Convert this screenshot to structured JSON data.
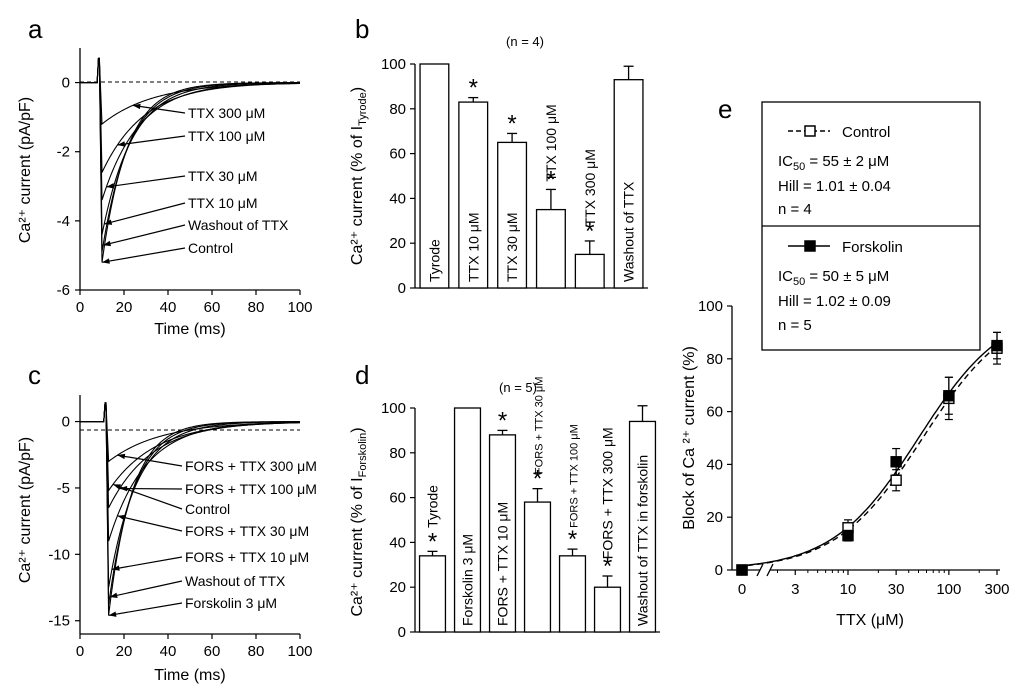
{
  "panels": {
    "a": {
      "letter": "a",
      "ylabel": "Ca²⁺ current (pA/pF)",
      "xlabel": "Time (ms)",
      "xticks": [
        "0",
        "20",
        "40",
        "60",
        "80",
        "100"
      ],
      "yticks": [
        "0",
        "-2",
        "-4",
        "-6"
      ],
      "annotations": [
        "TTX 300 μM",
        "TTX 100 μM",
        "TTX 30 μM",
        "TTX 10 μM",
        "Washout of TTX",
        "Control"
      ]
    },
    "b": {
      "letter": "b",
      "n_label": "(n = 4)",
      "ylabel": "Ca²⁺ current (% of  I",
      "ylabel_sub": "Tyrode",
      "ylabel_close": ")",
      "yticks": [
        "100",
        "80",
        "60",
        "40",
        "20",
        "0"
      ]
    },
    "c": {
      "letter": "c",
      "ylabel": "Ca²⁺ current (pA/pF)",
      "xlabel": "Time (ms)",
      "xticks": [
        "0",
        "20",
        "40",
        "60",
        "80",
        "100"
      ],
      "yticks": [
        "0",
        "-5",
        "-10",
        "-15"
      ],
      "annotations": [
        "FORS + TTX 300 μM",
        "FORS + TTX 100 μM",
        "Control",
        "FORS + TTX 30 μM",
        "FORS + TTX 10 μM",
        "Washout of TTX",
        "Forskolin 3 μM"
      ]
    },
    "d": {
      "letter": "d",
      "n_label": "(n = 5)",
      "ylabel": "Ca²⁺ current (% of  I",
      "ylabel_sub": "Forskolin",
      "ylabel_close": ")",
      "yticks": [
        "100",
        "80",
        "60",
        "40",
        "20",
        "0"
      ]
    },
    "e": {
      "letter": "e",
      "ylabel": "Block of Ca ²⁺ current (%)",
      "xlabel": "TTX (μM)",
      "xticks": [
        "0",
        "3",
        "10",
        "30",
        "100",
        "300"
      ],
      "yticks": [
        "0",
        "20",
        "40",
        "60",
        "80",
        "100"
      ],
      "legend": {
        "control_name": "Control",
        "control_ic50": "IC",
        "control_ic50_sub": "50",
        "control_ic50_val": " = 55 ± 2 μM",
        "control_hill": "Hill = 1.01 ± 0.04",
        "control_n": "n = 4",
        "fors_name": "Forskolin",
        "fors_ic50": "IC",
        "fors_ic50_sub": "50",
        "fors_ic50_val": " = 50 ± 5 μM",
        "fors_hill": "Hill = 1.02 ± 0.09",
        "fors_n": "n = 5"
      }
    }
  },
  "chart_data": [
    {
      "id": "a",
      "type": "line",
      "title": "",
      "xlabel": "Time (ms)",
      "ylabel": "Ca2+ current (pA/pF)",
      "xlim": [
        0,
        100
      ],
      "ylim": [
        -6,
        1
      ],
      "series": [
        {
          "name": "TTX 300 μM",
          "peak": -1.2
        },
        {
          "name": "TTX 100 μM",
          "peak": -2.6
        },
        {
          "name": "TTX 30 μM",
          "peak": -3.4
        },
        {
          "name": "TTX 10 μM",
          "peak": -4.4
        },
        {
          "name": "Washout of TTX",
          "peak": -4.9
        },
        {
          "name": "Control",
          "peak": -5.2
        }
      ]
    },
    {
      "id": "b",
      "type": "bar",
      "title": "(n = 4)",
      "ylabel": "Ca2+ current (% of I Tyrode)",
      "ylim": [
        0,
        100
      ],
      "categories": [
        "Tyrode",
        "TTX 10 μM",
        "TTX 30 μM",
        "TTX 100 μM",
        "TTX 300 μM",
        "Washout of TTX"
      ],
      "values": [
        100,
        83,
        65,
        35,
        15,
        93
      ],
      "errors": [
        0,
        2,
        4,
        9,
        6,
        6
      ],
      "significant": [
        false,
        true,
        true,
        true,
        true,
        false
      ]
    },
    {
      "id": "c",
      "type": "line",
      "title": "",
      "xlabel": "Time (ms)",
      "ylabel": "Ca2+ current (pA/pF)",
      "xlim": [
        0,
        100
      ],
      "ylim": [
        -16,
        2
      ],
      "series": [
        {
          "name": "FORS + TTX 300 μM",
          "peak": -3.0
        },
        {
          "name": "FORS + TTX 100 μM",
          "peak": -6.5
        },
        {
          "name": "Control",
          "peak": -5.2
        },
        {
          "name": "FORS + TTX 30 μM",
          "peak": -9.0
        },
        {
          "name": "FORS + TTX 10 μM",
          "peak": -12.5
        },
        {
          "name": "Washout of TTX",
          "peak": -13.8
        },
        {
          "name": "Forskolin 3 μM",
          "peak": -14.6
        }
      ]
    },
    {
      "id": "d",
      "type": "bar",
      "title": "(n = 5)",
      "ylabel": "Ca2+ current (% of I Forskolin)",
      "ylim": [
        0,
        100
      ],
      "categories": [
        "Tyrode",
        "Forskolin 3 μM",
        "FORS + TTX 10 μM",
        "FORS + TTX 30 μM",
        "FORS + TTX 100 μM",
        "FORS + TTX 300 μM",
        "Washout of TTX in forskolin"
      ],
      "values": [
        34,
        100,
        88,
        58,
        34,
        20,
        94
      ],
      "errors": [
        2,
        0,
        2,
        6,
        3,
        5,
        7
      ],
      "significant": [
        true,
        false,
        true,
        true,
        true,
        true,
        false
      ]
    },
    {
      "id": "e",
      "type": "scatter",
      "xlabel": "TTX (μM)",
      "ylabel": "Block of Ca 2+ current (%)",
      "ylim": [
        0,
        100
      ],
      "x": [
        0,
        10,
        30,
        100,
        300
      ],
      "series": [
        {
          "name": "Control",
          "values": [
            0,
            16,
            34,
            65,
            84
          ],
          "errors": [
            0,
            3,
            4,
            8,
            6
          ],
          "marker": "open-square",
          "line": "dashed",
          "ic50": 55,
          "hill": 1.01
        },
        {
          "name": "Forskolin",
          "values": [
            0,
            13,
            41,
            66,
            85
          ],
          "errors": [
            0,
            2,
            5,
            7,
            5
          ],
          "marker": "filled-square",
          "line": "solid",
          "ic50": 50,
          "hill": 1.02
        }
      ]
    }
  ]
}
